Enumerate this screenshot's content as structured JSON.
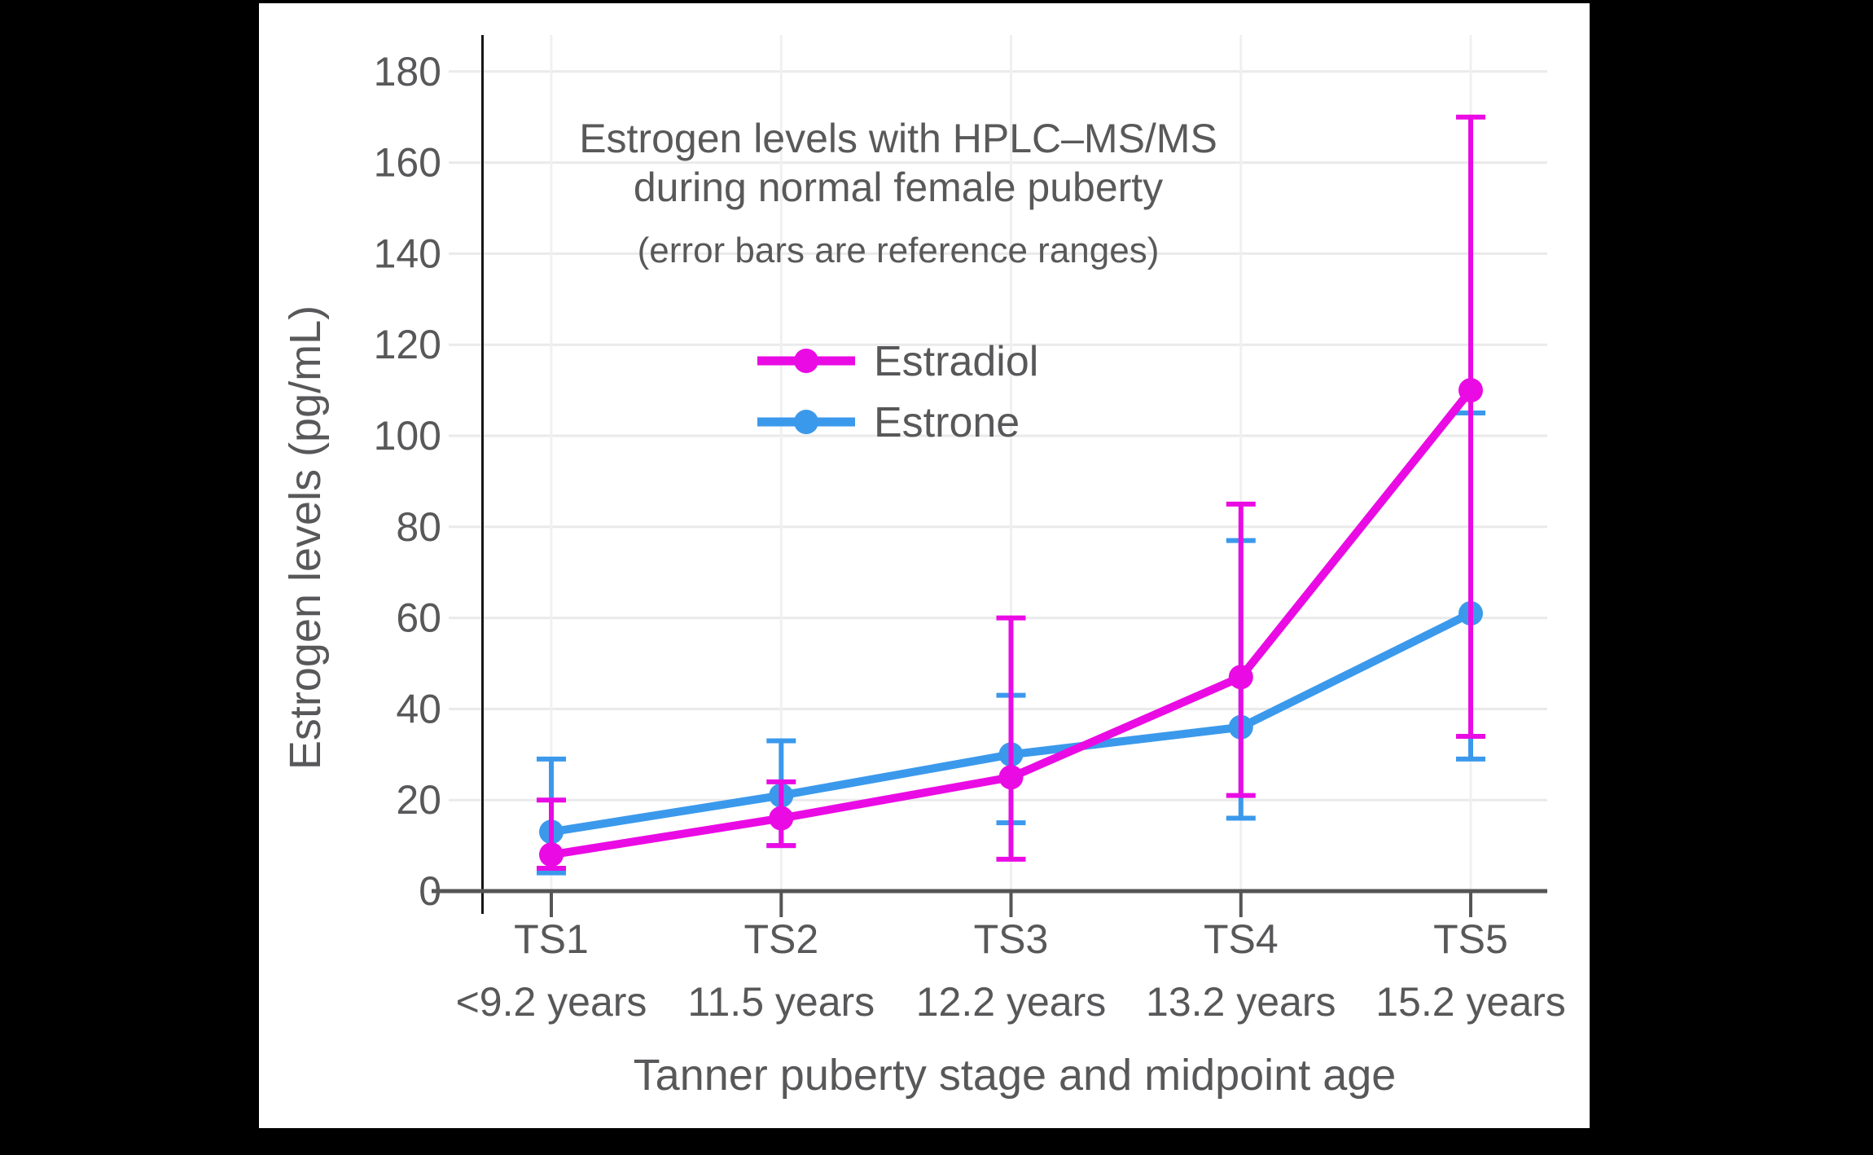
{
  "figure": {
    "title_line1": "Estrogen levels with HPLC–MS/MS",
    "title_line2": "during normal female puberty",
    "subtitle": "(error bars are reference ranges)",
    "background_color": "#000000",
    "panel_color": "#ffffff",
    "text_color": "#595959",
    "grid_color": "#EAEAEA",
    "axis_color": "#555555"
  },
  "axes": {
    "y_label": "Estrogen levels (pg/mL)",
    "x_label": "Tanner puberty stage and midpoint age"
  },
  "legend": {
    "items": [
      {
        "label": "Estradiol",
        "color": "#EA0BE4"
      },
      {
        "label": "Estrone",
        "color": "#3B99EC"
      }
    ]
  },
  "chart_data": {
    "type": "line",
    "title": "Estrogen levels with HPLC–MS/MS during normal female puberty",
    "subtitle": "(error bars are reference ranges)",
    "xlabel": "Tanner puberty stage and midpoint age",
    "ylabel": "Estrogen levels (pg/mL)",
    "ylim": [
      0,
      190
    ],
    "yticks": [
      0,
      20,
      40,
      60,
      80,
      100,
      120,
      140,
      160,
      180
    ],
    "grid": true,
    "legend_position": "upper-center-inside",
    "error_bars": "reference ranges",
    "categories": [
      "TS1",
      "TS2",
      "TS3",
      "TS4",
      "TS5"
    ],
    "category_ages": [
      "<9.2 years",
      "11.5 years",
      "12.2 years",
      "13.2 years",
      "15.2 years"
    ],
    "series": [
      {
        "name": "Estradiol",
        "color": "#EA0BE4",
        "values": [
          8,
          16,
          25,
          47,
          110
        ],
        "range_low": [
          5,
          10,
          7,
          21,
          34
        ],
        "range_high": [
          20,
          24,
          60,
          85,
          170
        ]
      },
      {
        "name": "Estrone",
        "color": "#3B99EC",
        "values": [
          13,
          21,
          30,
          36,
          61
        ],
        "range_low": [
          4,
          10,
          15,
          16,
          29
        ],
        "range_high": [
          29,
          33,
          43,
          77,
          105
        ]
      }
    ]
  }
}
